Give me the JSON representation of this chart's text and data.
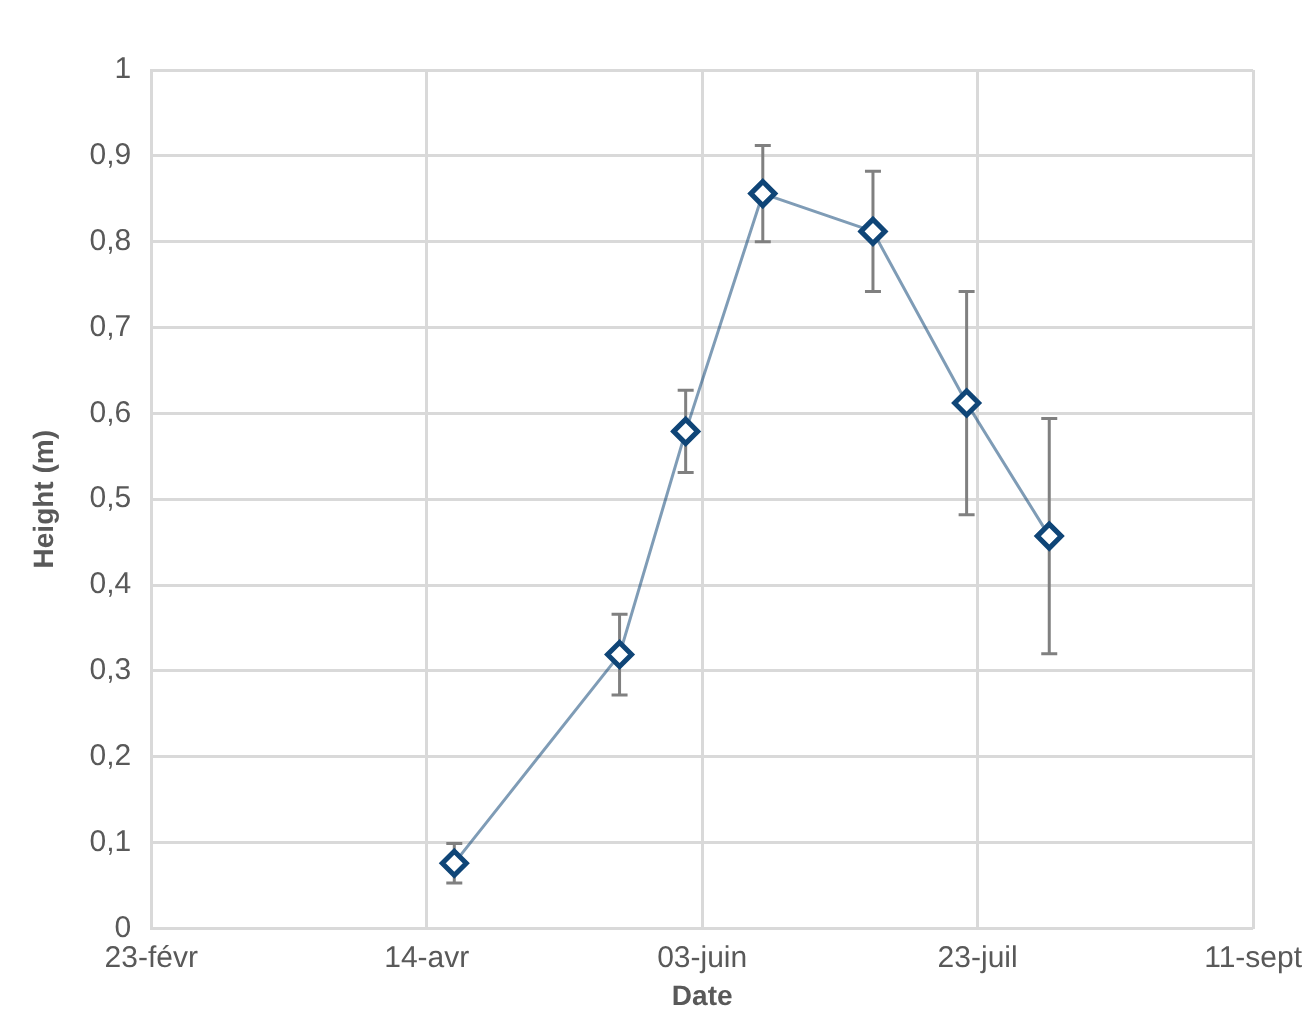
{
  "chart_data": {
    "type": "line",
    "xlabel": "Date",
    "ylabel": "Height (m)",
    "x": [
      "--04-19",
      "--05-19",
      "--05-31",
      "--06-14",
      "--07-04",
      "--07-21",
      "--08-05"
    ],
    "series": [
      {
        "color": "#0f4577",
        "values": [
          0.076,
          0.319,
          0.579,
          0.856,
          0.812,
          0.612,
          0.457
        ],
        "errors": [
          0.023,
          0.047,
          0.048,
          0.056,
          0.07,
          0.13,
          0.137
        ]
      }
    ],
    "xlim": [
      "--02-23",
      "--09-11"
    ],
    "xticks": [
      {
        "value": "--02-23",
        "label": "23-févr"
      },
      {
        "value": "--04-14",
        "label": "14-avr"
      },
      {
        "value": "--06-03",
        "label": "03-juin"
      },
      {
        "value": "--07-23",
        "label": "23-juil"
      },
      {
        "value": "--09-11",
        "label": "11-sept"
      }
    ],
    "ylim": [
      0,
      1
    ],
    "yticks": [
      0,
      {
        "value": 0.1,
        "label": "0,1"
      },
      {
        "value": 0.2,
        "label": "0,2"
      },
      {
        "value": 0.3,
        "label": "0,3"
      },
      {
        "value": 0.4,
        "label": "0,4"
      },
      {
        "value": 0.5,
        "label": "0,5"
      },
      {
        "value": 0.6,
        "label": "0,6"
      },
      {
        "value": 0.7,
        "label": "0,7"
      },
      {
        "value": 0.8,
        "label": "0,8"
      },
      {
        "value": 0.9,
        "label": "0,9"
      },
      1
    ],
    "grid": true,
    "legend": false,
    "marker": "diamond",
    "line_style": "solid"
  }
}
